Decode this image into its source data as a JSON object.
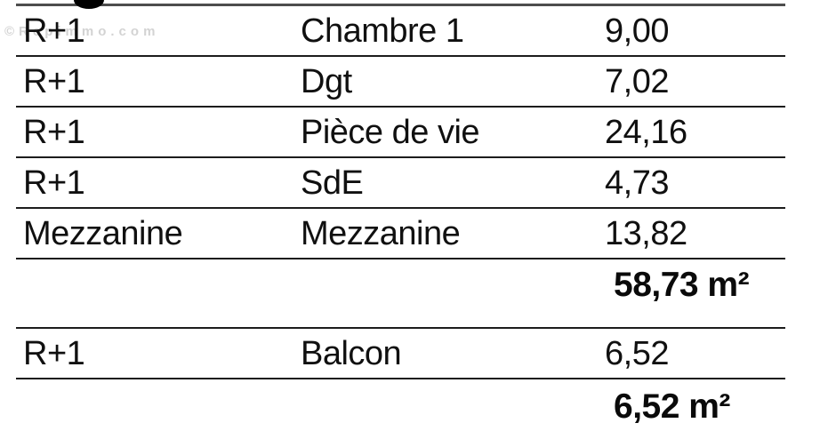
{
  "watermark": "©Repimmo.com",
  "table": {
    "columns": [
      "level",
      "room",
      "area_m2"
    ],
    "rows": [
      {
        "level": "R+1",
        "room": "Chambre 1",
        "area": "9,00"
      },
      {
        "level": "R+1",
        "room": "Dgt",
        "area": "7,02"
      },
      {
        "level": "R+1",
        "room": "Pièce de vie",
        "area": "24,16"
      },
      {
        "level": "R+1",
        "room": "SdE",
        "area": "4,73"
      },
      {
        "level": "Mezzanine",
        "room": "Mezzanine",
        "area": "13,82"
      }
    ],
    "total_living": "58,73 m²",
    "annex_rows": [
      {
        "level": "R+1",
        "room": "Balcon",
        "area": "6,52"
      }
    ],
    "total_annex": "6,52 m²"
  }
}
